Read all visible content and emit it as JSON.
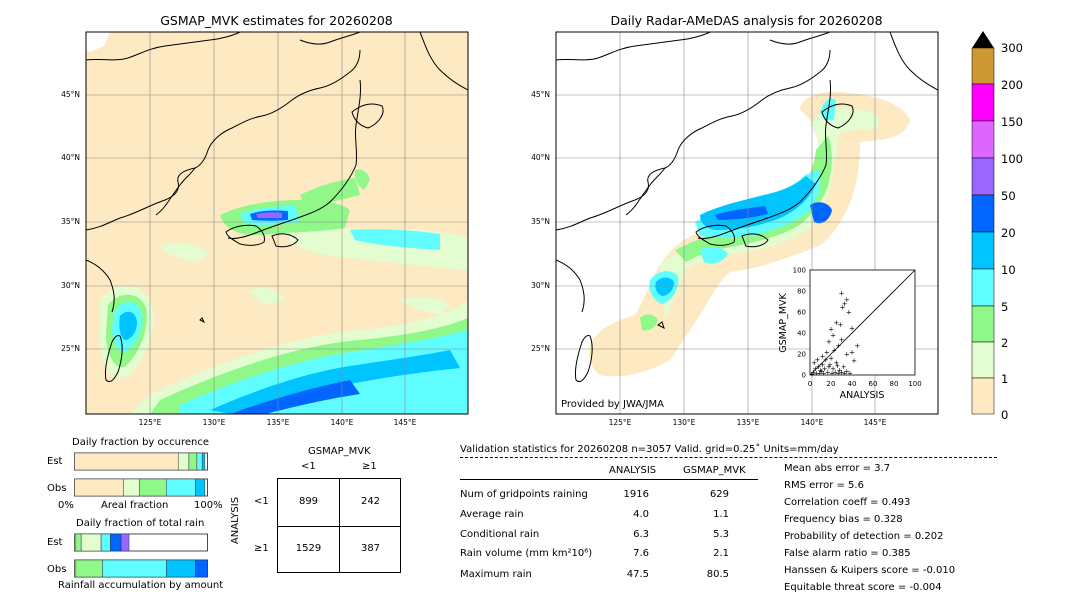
{
  "colors": {
    "land_bg": "#fde9c2",
    "level_0_1": "#fde9c2",
    "level_1_2": "#e3fcd0",
    "level_2_5": "#8ff889",
    "level_5_10": "#5ffdff",
    "level_10_20": "#00c4ff",
    "level_20_50": "#0066ff",
    "level_50_100": "#9966ff",
    "level_100_150": "#dd66ff",
    "level_150_200": "#ff00ff",
    "level_200_300": "#cc9933",
    "over_300": "#000000"
  },
  "left_map": {
    "title": "GSMAP_MVK estimates for 20260208",
    "lat_labels": [
      "45°N",
      "40°N",
      "35°N",
      "30°N",
      "25°N"
    ],
    "lon_labels": [
      "125°E",
      "130°E",
      "135°E",
      "140°E",
      "145°E"
    ]
  },
  "right_map": {
    "title": "Daily Radar-AMeDAS analysis for 20260208",
    "lat_labels": [
      "45°N",
      "40°N",
      "35°N",
      "30°N",
      "25°N"
    ],
    "lon_labels": [
      "125°E",
      "130°E",
      "135°E",
      "140°E",
      "145°E"
    ],
    "credit": "Provided by JWA/JMA"
  },
  "colorbar": {
    "tick_labels": [
      "300",
      "200",
      "150",
      "100",
      "50",
      "20",
      "10",
      "5",
      "2",
      "1",
      "0"
    ]
  },
  "chart_data": [
    {
      "type": "scatter",
      "name": "inset-scatter",
      "xlabel": "ANALYSIS",
      "ylabel": "GSMAP_MVK",
      "xlim": [
        0,
        100
      ],
      "ylim": [
        0,
        100
      ],
      "x_ticks": [
        "0",
        "20",
        "40",
        "60",
        "80",
        "100"
      ],
      "y_ticks": [
        "0",
        "20",
        "40",
        "60",
        "80",
        "100"
      ],
      "points": [
        [
          30,
          78
        ],
        [
          33,
          68
        ],
        [
          35,
          72
        ],
        [
          31,
          65
        ],
        [
          37,
          60
        ],
        [
          25,
          50
        ],
        [
          20,
          44
        ],
        [
          29,
          48
        ],
        [
          40,
          45
        ],
        [
          22,
          38
        ],
        [
          18,
          32
        ],
        [
          27,
          28
        ],
        [
          30,
          34
        ],
        [
          23,
          24
        ],
        [
          16,
          22
        ],
        [
          12,
          18
        ],
        [
          15,
          15
        ],
        [
          20,
          16
        ],
        [
          25,
          12
        ],
        [
          35,
          20
        ],
        [
          40,
          22
        ],
        [
          42,
          14
        ],
        [
          12,
          10
        ],
        [
          8,
          8
        ],
        [
          10,
          5
        ],
        [
          5,
          6
        ],
        [
          14,
          6
        ],
        [
          18,
          8
        ],
        [
          22,
          6
        ],
        [
          28,
          5
        ],
        [
          30,
          3
        ],
        [
          35,
          4
        ],
        [
          6,
          2
        ],
        [
          3,
          3
        ],
        [
          9,
          2
        ],
        [
          13,
          2
        ],
        [
          17,
          3
        ],
        [
          21,
          2
        ],
        [
          24,
          3
        ],
        [
          27,
          2
        ],
        [
          33,
          2
        ],
        [
          38,
          2
        ],
        [
          4,
          12
        ],
        [
          7,
          15
        ],
        [
          2,
          1
        ],
        [
          11,
          4
        ],
        [
          19,
          10
        ],
        [
          26,
          9
        ],
        [
          32,
          8
        ],
        [
          45,
          28
        ]
      ]
    },
    {
      "type": "bar",
      "name": "daily-fraction-occurence",
      "title": "Daily fraction by occurence",
      "categories": [
        "Est",
        "Obs"
      ],
      "xlabel": "Areal fraction",
      "x_tick_left": "0%",
      "x_tick_right": "100%",
      "segments": {
        "Est": [
          0.78,
          0.08,
          0.06,
          0.04,
          0.02
        ],
        "Obs": [
          0.37,
          0.12,
          0.2,
          0.22,
          0.07
        ]
      }
    },
    {
      "type": "bar",
      "name": "daily-fraction-total-rain",
      "title": "Daily fraction of total rain",
      "categories": [
        "Est",
        "Obs"
      ],
      "xlabel": "Rainfall accumulation by amount",
      "segments": {
        "Est": [
          0.01,
          0.04,
          0.15,
          0.07,
          0.08,
          0.06
        ],
        "Obs": [
          0.01,
          0.2,
          0.48,
          0.22,
          0.09
        ]
      }
    },
    {
      "type": "table",
      "name": "contingency-table",
      "col_title": "GSMAP_MVK",
      "row_title": "ANALYSIS",
      "col_labels": [
        "<1",
        "≥1"
      ],
      "row_labels": [
        "<1",
        "≥1"
      ],
      "cells": [
        [
          "899",
          "242"
        ],
        [
          "1529",
          "387"
        ]
      ]
    }
  ],
  "validation": {
    "header": "Validation statistics for 20260208  n=3057 Valid. grid=0.25˚ Units=mm/day",
    "col_analysis": "ANALYSIS",
    "col_gsmap": "GSMAP_MVK",
    "rows": [
      {
        "label": "Num of gridpoints raining",
        "analysis": "1916",
        "gsmap": "629"
      },
      {
        "label": "Average rain",
        "analysis": "4.0",
        "gsmap": "1.1"
      },
      {
        "label": "Conditional rain",
        "analysis": "6.3",
        "gsmap": "5.3"
      },
      {
        "label": "Rain volume (mm km²10⁶)",
        "analysis": "7.6",
        "gsmap": "2.1"
      },
      {
        "label": "Maximum rain",
        "analysis": "47.5",
        "gsmap": "80.5"
      }
    ],
    "scores": [
      "Mean abs error =    3.7",
      "RMS error =    5.6",
      "Correlation coeff =  0.493",
      "Frequency bias =  0.328",
      "Probability of detection =  0.202",
      "False alarm ratio =  0.385",
      "Hanssen & Kuipers score = -0.010",
      "Equitable threat score = -0.004"
    ]
  }
}
